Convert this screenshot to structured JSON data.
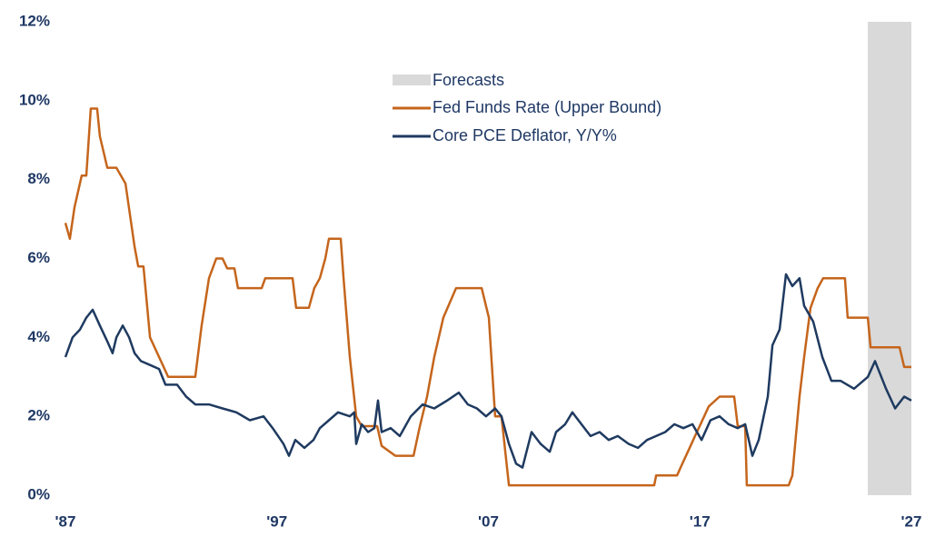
{
  "chart_data": {
    "type": "line",
    "xlim": [
      1987,
      2027
    ],
    "ylim": [
      0,
      12
    ],
    "xticks": [
      {
        "value": 1987,
        "label": "'87"
      },
      {
        "value": 1997,
        "label": "'97"
      },
      {
        "value": 2007,
        "label": "'07"
      },
      {
        "value": 2017,
        "label": "'17"
      },
      {
        "value": 2027,
        "label": "'27"
      }
    ],
    "yticks": [
      {
        "value": 0,
        "label": "0%"
      },
      {
        "value": 2,
        "label": "2%"
      },
      {
        "value": 4,
        "label": "4%"
      },
      {
        "value": 6,
        "label": "6%"
      },
      {
        "value": 8,
        "label": "8%"
      },
      {
        "value": 10,
        "label": "10%"
      },
      {
        "value": 12,
        "label": "12%"
      }
    ],
    "forecast": {
      "name": "Forecasts",
      "color": "#d9d9d9",
      "x_range": [
        2024.94,
        2027
      ]
    },
    "series": [
      {
        "name": "Fed Funds Rate (Upper Bound)",
        "color": "#c5651c",
        "x": [
          1987.0,
          1987.21,
          1987.43,
          1987.77,
          1987.99,
          1988.2,
          1988.5,
          1988.63,
          1988.98,
          1989.41,
          1989.84,
          1990.27,
          1990.44,
          1990.69,
          1991.0,
          1991.43,
          1991.86,
          1993.14,
          1993.44,
          1993.79,
          1994.13,
          1994.43,
          1994.65,
          1994.99,
          1995.16,
          1996.28,
          1996.45,
          1997.74,
          1997.91,
          1998.51,
          1998.77,
          1999.03,
          1999.29,
          1999.46,
          2000.02,
          2000.15,
          2000.45,
          2000.75,
          2001.01,
          2001.74,
          2001.95,
          2002.6,
          2003.46,
          2003.76,
          2004.1,
          2004.44,
          2004.87,
          2005.47,
          2006.68,
          2007.02,
          2007.32,
          2007.62,
          2007.97,
          2014.84,
          2014.93,
          2015.92,
          2016.13,
          2016.56,
          2016.77,
          2016.99,
          2017.42,
          2017.93,
          2018.62,
          2018.79,
          2019.14,
          2019.22,
          2021.2,
          2021.37,
          2021.54,
          2021.71,
          2021.93,
          2022.23,
          2022.57,
          2022.83,
          2023.86,
          2023.99,
          2024.94,
          2025.07,
          2026.44,
          2026.66,
          2027.0
        ],
        "values": [
          6.9,
          6.5,
          7.3,
          8.1,
          8.1,
          9.8,
          9.8,
          9.1,
          8.3,
          8.3,
          7.9,
          6.3,
          5.8,
          5.8,
          4.0,
          3.5,
          3.0,
          3.0,
          4.3,
          5.5,
          6.0,
          6.0,
          5.75,
          5.75,
          5.25,
          5.25,
          5.5,
          5.5,
          4.75,
          4.75,
          5.25,
          5.5,
          6.0,
          6.5,
          6.5,
          5.5,
          3.5,
          2.0,
          1.75,
          1.75,
          1.25,
          1.0,
          1.0,
          1.75,
          2.5,
          3.5,
          4.5,
          5.25,
          5.25,
          4.5,
          2.0,
          2.0,
          0.25,
          0.25,
          0.5,
          0.5,
          0.75,
          1.25,
          1.5,
          1.75,
          2.25,
          2.5,
          2.5,
          1.75,
          1.75,
          0.25,
          0.25,
          0.5,
          1.5,
          2.5,
          3.5,
          4.75,
          5.25,
          5.5,
          5.5,
          4.5,
          4.5,
          3.75,
          3.75,
          3.25,
          3.25
        ]
      },
      {
        "name": "Core PCE Deflator, Y/Y%",
        "color": "#1f3a60",
        "x": [
          1987.0,
          1987.34,
          1987.69,
          1987.99,
          1988.29,
          1988.63,
          1988.98,
          1989.23,
          1989.41,
          1989.71,
          1990.01,
          1990.27,
          1990.57,
          1991.0,
          1991.43,
          1991.73,
          1992.28,
          1992.71,
          1993.14,
          1993.79,
          1994.43,
          1995.08,
          1995.72,
          1996.37,
          1996.8,
          1997.31,
          1997.57,
          1997.87,
          1998.3,
          1998.73,
          1999.03,
          1999.46,
          1999.89,
          2000.45,
          2000.66,
          2000.75,
          2001.01,
          2001.31,
          2001.61,
          2001.78,
          2001.95,
          2002.38,
          2002.81,
          2003.33,
          2003.89,
          2004.44,
          2005.05,
          2005.6,
          2006.03,
          2006.46,
          2006.89,
          2007.32,
          2007.62,
          2007.97,
          2008.31,
          2008.61,
          2009.04,
          2009.47,
          2009.9,
          2010.2,
          2010.63,
          2010.97,
          2011.4,
          2011.83,
          2012.26,
          2012.69,
          2013.12,
          2013.64,
          2014.07,
          2014.5,
          2014.93,
          2015.36,
          2015.79,
          2016.22,
          2016.65,
          2017.08,
          2017.5,
          2017.93,
          2018.36,
          2018.79,
          2019.14,
          2019.48,
          2019.78,
          2020.21,
          2020.43,
          2020.77,
          2021.07,
          2021.37,
          2021.71,
          2021.93,
          2022.36,
          2022.79,
          2023.22,
          2023.65,
          2024.29,
          2024.94,
          2025.28,
          2025.8,
          2026.23,
          2026.66,
          2027.0
        ],
        "values": [
          3.5,
          4.0,
          4.2,
          4.5,
          4.7,
          4.3,
          3.9,
          3.6,
          4.0,
          4.3,
          4.0,
          3.6,
          3.4,
          3.3,
          3.2,
          2.8,
          2.8,
          2.5,
          2.3,
          2.3,
          2.2,
          2.1,
          1.9,
          2.0,
          1.7,
          1.3,
          1.0,
          1.4,
          1.2,
          1.4,
          1.7,
          1.9,
          2.1,
          2.0,
          2.1,
          1.3,
          1.8,
          1.6,
          1.7,
          2.4,
          1.6,
          1.7,
          1.5,
          2.0,
          2.3,
          2.2,
          2.4,
          2.6,
          2.3,
          2.2,
          2.0,
          2.2,
          2.0,
          1.3,
          0.8,
          0.7,
          1.6,
          1.3,
          1.1,
          1.6,
          1.8,
          2.1,
          1.8,
          1.5,
          1.6,
          1.4,
          1.5,
          1.3,
          1.2,
          1.4,
          1.5,
          1.6,
          1.8,
          1.7,
          1.8,
          1.4,
          1.9,
          2.0,
          1.8,
          1.7,
          1.8,
          1.0,
          1.4,
          2.5,
          3.8,
          4.2,
          5.6,
          5.3,
          5.5,
          4.8,
          4.4,
          3.5,
          2.9,
          2.9,
          2.7,
          3.0,
          3.4,
          2.7,
          2.2,
          2.5,
          2.4
        ]
      }
    ]
  }
}
